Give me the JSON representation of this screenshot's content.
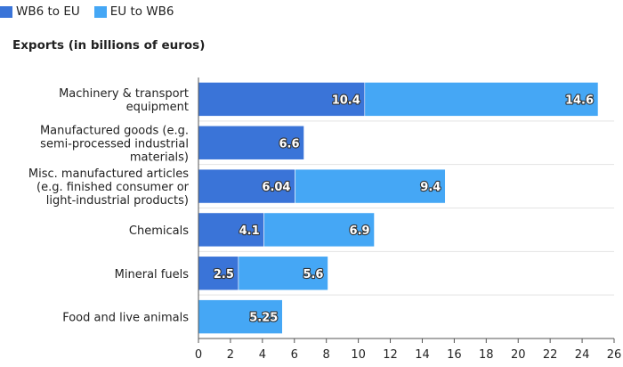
{
  "chart_data": {
    "type": "bar",
    "orientation": "horizontal",
    "stacked": true,
    "title": "Exports (in billions of euros)",
    "categories": [
      [
        "Machinery & transport",
        "equipment"
      ],
      [
        "Manufactured goods (e.g.",
        "semi-processed industrial",
        "materials)"
      ],
      [
        "Misc. manufactured articles",
        "(e.g. finished consumer or",
        "light-industrial products)"
      ],
      [
        "Chemicals"
      ],
      [
        "Mineral fuels"
      ],
      [
        "Food and live animals"
      ]
    ],
    "series": [
      {
        "name": "WB6 to EU",
        "color": "#3a74d8",
        "values": [
          10.4,
          6.6,
          6.04,
          4.1,
          2.5,
          null
        ],
        "labels": [
          "10.4",
          "6.6",
          "6.04",
          "4.1",
          "2.5",
          ""
        ]
      },
      {
        "name": "EU to WB6",
        "color": "#45a7f5",
        "values": [
          14.6,
          null,
          9.4,
          6.9,
          5.6,
          5.25
        ],
        "labels": [
          "14.6",
          "",
          "9.4",
          "6.9",
          "5.6",
          "5.25"
        ]
      }
    ],
    "xlim": [
      0,
      26
    ],
    "xticks": [
      0,
      2,
      4,
      6,
      8,
      10,
      12,
      14,
      16,
      18,
      20,
      22,
      24,
      26
    ],
    "grid": true,
    "legend": "top-left"
  }
}
